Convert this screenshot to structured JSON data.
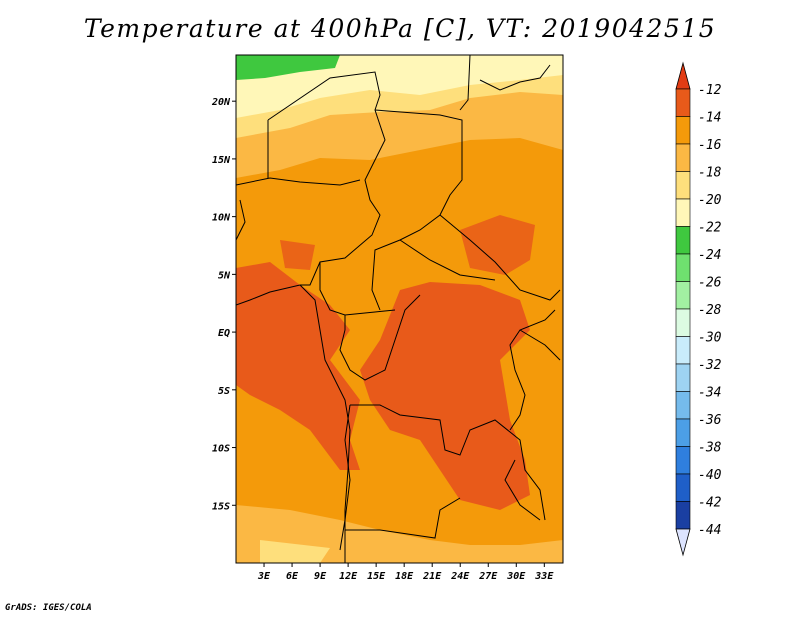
{
  "title": "Temperature at 400hPa [C], VT: 2019042515",
  "credit": "GrADS: IGES/COLA",
  "map": {
    "lon_range": [
      0,
      35
    ],
    "lat_range": [
      -20,
      24
    ],
    "lon_ticks": [
      {
        "value": 3,
        "label": "3E"
      },
      {
        "value": 6,
        "label": "6E"
      },
      {
        "value": 9,
        "label": "9E"
      },
      {
        "value": 12,
        "label": "12E"
      },
      {
        "value": 15,
        "label": "15E"
      },
      {
        "value": 18,
        "label": "18E"
      },
      {
        "value": 21,
        "label": "21E"
      },
      {
        "value": 24,
        "label": "24E"
      },
      {
        "value": 27,
        "label": "27E"
      },
      {
        "value": 30,
        "label": "30E"
      },
      {
        "value": 33,
        "label": "33E"
      }
    ],
    "lat_ticks": [
      {
        "value": 20,
        "label": "20N"
      },
      {
        "value": 15,
        "label": "15N"
      },
      {
        "value": 10,
        "label": "10N"
      },
      {
        "value": 5,
        "label": "5N"
      },
      {
        "value": 0,
        "label": "EQ"
      },
      {
        "value": -5,
        "label": "5S"
      },
      {
        "value": -10,
        "label": "10S"
      },
      {
        "value": -15,
        "label": "15S"
      }
    ]
  },
  "colorbar": {
    "levels": [
      {
        "label": "-12",
        "color": "#e85a1a"
      },
      {
        "label": "-14",
        "color": "#f49a0a"
      },
      {
        "label": "-16",
        "color": "#fbb844"
      },
      {
        "label": "-18",
        "color": "#fedf7c"
      },
      {
        "label": "-20",
        "color": "#fff7b8"
      },
      {
        "label": "-22",
        "color": "#3fc83f"
      },
      {
        "label": "-24",
        "color": "#6fe06f"
      },
      {
        "label": "-26",
        "color": "#a2f0a2"
      },
      {
        "label": "-28",
        "color": "#dcfbe2"
      },
      {
        "label": "-30",
        "color": "#c9ecfb"
      },
      {
        "label": "-32",
        "color": "#9ed3f2"
      },
      {
        "label": "-34",
        "color": "#75bbec"
      },
      {
        "label": "-36",
        "color": "#4c9fe6"
      },
      {
        "label": "-38",
        "color": "#2f7fde"
      },
      {
        "label": "-40",
        "color": "#1f5fc8"
      },
      {
        "label": "-42",
        "color": "#1a3fa2"
      },
      {
        "label": "-44",
        "color": "#0d1a78"
      }
    ],
    "above_color": "#e23c14",
    "below_color": "#dde4ff"
  },
  "colors": {
    "band_dark": "#e85a1a",
    "band_orange": "#f49a0a",
    "band_light_orange": "#fbb844",
    "band_yellow": "#fedf7c",
    "band_pale": "#fff7b8",
    "band_green": "#3fc83f"
  }
}
